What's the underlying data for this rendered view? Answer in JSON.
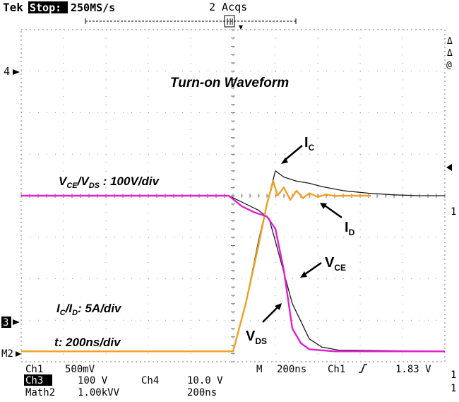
{
  "header": {
    "brand": "Tek",
    "state": "Stop:",
    "sample_rate": "250MS/s",
    "acqs": "2 Acqs"
  },
  "side_markers": {
    "ch4": "4",
    "ch3": "3",
    "m2": "M2",
    "r_delta1": "Δ",
    "r_delta2": "Δ",
    "r_at": "@",
    "r_one": "1"
  },
  "footer": {
    "row1": [
      "Ch1",
      "500mV",
      "M",
      "200ns",
      "Ch1",
      "1.83 V"
    ],
    "row2": [
      "Ch3",
      "100 V",
      "Ch4",
      "10.0 V"
    ],
    "row3": [
      "Math2",
      "1.00kVV",
      "200ns"
    ],
    "right_chars": [
      "1",
      "1"
    ]
  },
  "annotations": {
    "title": "Turn-on Waveform",
    "vce_vds_scale": {
      "a": "V",
      "a_sub": "CE",
      "b": "/V",
      "b_sub": "DS",
      "rest": " : 100V/div"
    },
    "ic_id_scale": {
      "a": "I",
      "a_sub": "C",
      "b": "/I",
      "b_sub": "D",
      "rest": ": 5A/div"
    },
    "time_scale": "t: 200ns/div",
    "ic": {
      "main": "I",
      "sub": "C"
    },
    "id": {
      "main": "I",
      "sub": "D"
    },
    "vce": {
      "main": "V",
      "sub": "CE"
    },
    "vds": {
      "main": "V",
      "sub": "DS"
    }
  },
  "chart_data": {
    "type": "line",
    "title": "Turn-on Waveform",
    "x_unit": "ns",
    "x_range": [
      -1000,
      1000
    ],
    "y_range_div": [
      -4,
      4
    ],
    "grid": true,
    "series": [
      {
        "name": "V_CE",
        "color": "#1a1a1a",
        "x": [
          -1000,
          -20,
          40,
          120,
          170,
          200,
          280,
          360,
          420,
          500,
          1000
        ],
        "y": [
          0.0,
          0.0,
          -0.15,
          -0.35,
          -0.55,
          -1.1,
          -2.6,
          -3.45,
          -3.65,
          -3.72,
          -3.75
        ]
      },
      {
        "name": "V_DS",
        "color": "#e020d0",
        "x": [
          -1000,
          -20,
          40,
          100,
          160,
          200,
          240,
          280,
          320,
          360,
          480,
          600,
          1000
        ],
        "y": [
          0.0,
          0.0,
          -0.25,
          -0.4,
          -0.5,
          -0.8,
          -1.8,
          -3.2,
          -3.55,
          -3.7,
          -3.75,
          -3.75,
          -3.75
        ]
      },
      {
        "name": "I_C",
        "color": "#1a1a1a",
        "x": [
          -1000,
          0,
          60,
          120,
          160,
          200,
          240,
          300,
          360,
          420,
          520,
          640,
          760,
          880,
          1000
        ],
        "y": [
          -3.75,
          -3.75,
          -2.6,
          -1.1,
          -0.2,
          0.6,
          0.45,
          0.35,
          0.3,
          0.22,
          0.12,
          0.06,
          0.02,
          0.0,
          0.0
        ]
      },
      {
        "name": "I_D",
        "color": "#f2a020",
        "x": [
          -1000,
          0,
          60,
          120,
          160,
          190,
          210,
          240,
          270,
          300,
          330,
          360,
          400,
          440,
          480,
          520,
          600,
          650
        ],
        "y": [
          -3.75,
          -3.75,
          -2.6,
          -1.2,
          -0.2,
          0.35,
          0.0,
          0.2,
          -0.1,
          0.12,
          -0.06,
          0.06,
          -0.03,
          0.03,
          -0.01,
          0.0,
          0.0,
          0.0
        ]
      }
    ]
  }
}
